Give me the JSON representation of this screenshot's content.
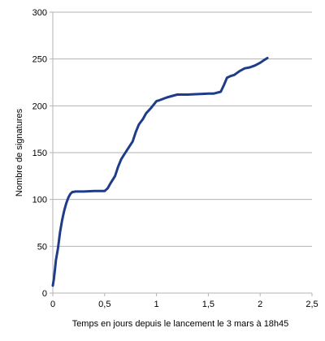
{
  "chart_data": {
    "type": "line",
    "title": "",
    "xlabel": "Temps en jours depuis le lancement le 3 mars à 18h45",
    "ylabel": "Nombre de signatures",
    "xlim": [
      0,
      2.5
    ],
    "ylim": [
      0,
      300
    ],
    "x_ticks": [
      "0",
      "0,5",
      "1",
      "1,5",
      "2",
      "2,5"
    ],
    "y_ticks": [
      "0",
      "50",
      "100",
      "150",
      "200",
      "250",
      "300"
    ],
    "x_tick_values": [
      0,
      0.5,
      1,
      1.5,
      2,
      2.5
    ],
    "y_tick_values": [
      0,
      50,
      100,
      150,
      200,
      250,
      300
    ],
    "grid": "horizontal",
    "legend": "none",
    "series": [
      {
        "color": "#1f3c88",
        "x": [
          0.0,
          0.01,
          0.02,
          0.03,
          0.05,
          0.07,
          0.09,
          0.11,
          0.13,
          0.15,
          0.17,
          0.19,
          0.2,
          0.22,
          0.25,
          0.3,
          0.4,
          0.5,
          0.53,
          0.56,
          0.6,
          0.63,
          0.66,
          0.7,
          0.73,
          0.77,
          0.8,
          0.83,
          0.87,
          0.9,
          0.95,
          1.0,
          1.03,
          1.1,
          1.2,
          1.3,
          1.4,
          1.5,
          1.55,
          1.62,
          1.65,
          1.68,
          1.72,
          1.75,
          1.8,
          1.85,
          1.9,
          1.95,
          2.0,
          2.04,
          2.07
        ],
        "values": [
          8,
          15,
          25,
          35,
          48,
          65,
          78,
          88,
          96,
          102,
          106,
          108,
          108,
          108.5,
          108.5,
          108.5,
          109,
          109,
          112,
          118,
          125,
          135,
          143,
          150,
          155,
          162,
          172,
          180,
          186,
          192,
          198,
          205,
          206,
          209,
          212,
          212,
          212.5,
          213,
          213,
          215,
          222,
          230,
          232,
          233,
          237,
          240,
          241,
          243,
          246,
          249,
          251
        ]
      }
    ]
  }
}
